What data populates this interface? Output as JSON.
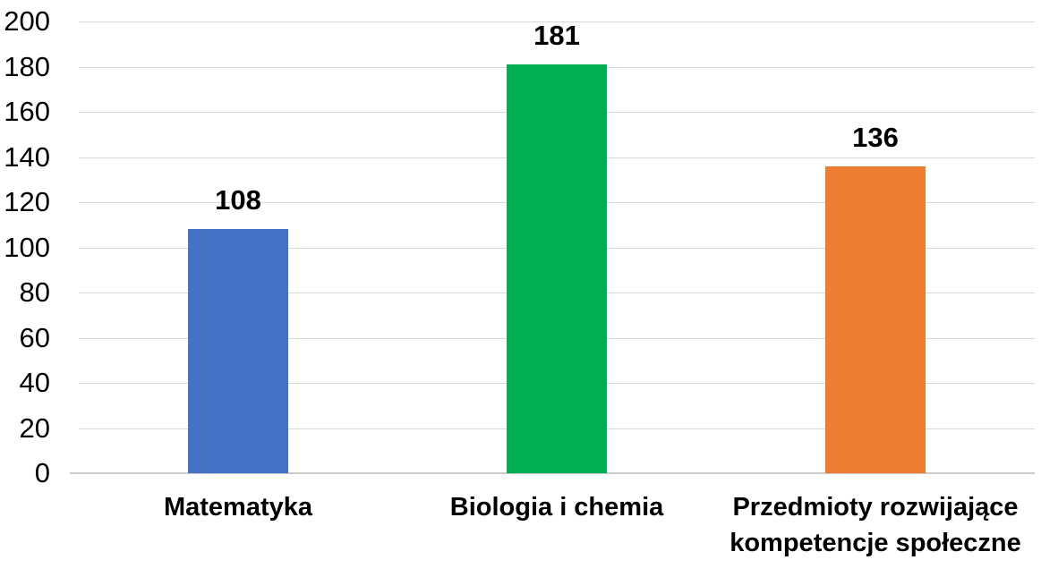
{
  "chart_data": {
    "type": "bar",
    "title": "",
    "xlabel": "",
    "ylabel": "",
    "categories": [
      "Matematyka",
      "Biologia i chemia",
      "Przedmioty rozwijające kompetencje społeczne"
    ],
    "category_lines": [
      [
        "Matematyka"
      ],
      [
        "Biologia i chemia"
      ],
      [
        "Przedmioty rozwijające",
        "kompetencje społeczne"
      ]
    ],
    "values": [
      108,
      181,
      136
    ],
    "data_labels": [
      "108",
      "181",
      "136"
    ],
    "bar_colors": [
      "#4472C4",
      "#00B050",
      "#ED7D31"
    ],
    "ylim": [
      0,
      200
    ],
    "ytick_step": 20,
    "ytick_labels": [
      "0",
      "20",
      "40",
      "60",
      "80",
      "100",
      "120",
      "140",
      "160",
      "180",
      "200"
    ],
    "grid": true,
    "legend": false,
    "gridline_color": "#D9D9D9",
    "axis_line_color": "#CBC9C9",
    "text_color": "#000000",
    "background_color": "#FFFFFF"
  }
}
